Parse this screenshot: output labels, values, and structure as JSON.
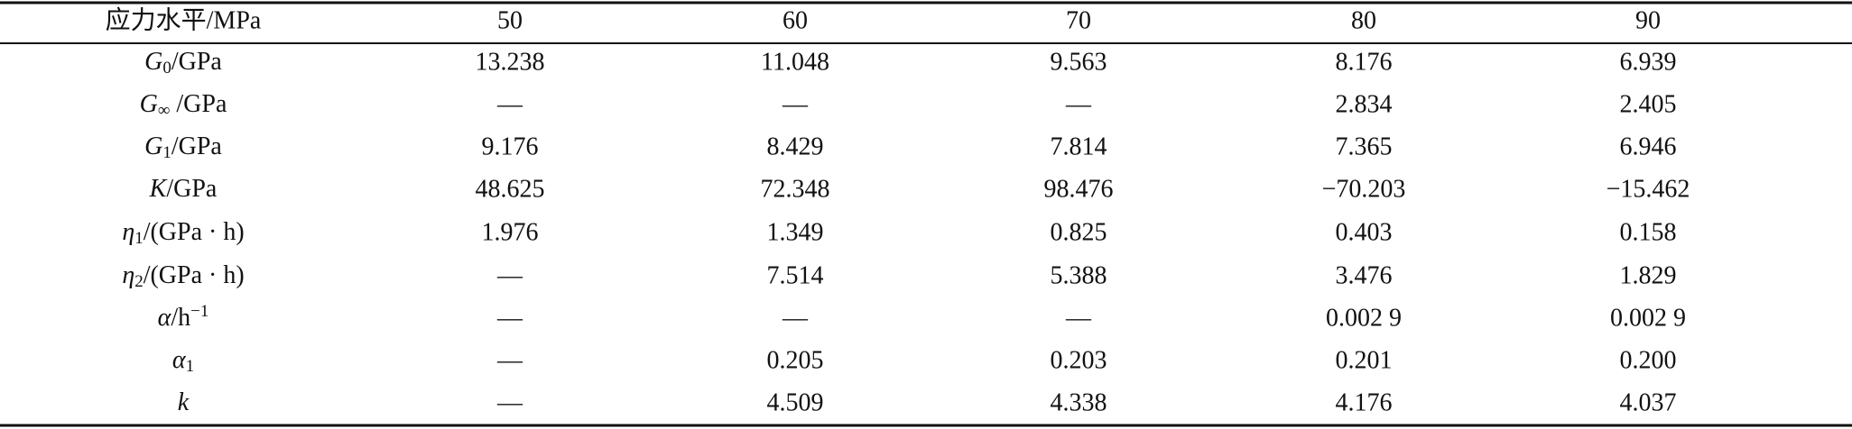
{
  "table": {
    "header": [
      "应力水平/MPa",
      "50",
      "60",
      "70",
      "80",
      "90"
    ],
    "rows": [
      {
        "label": [
          {
            "t": "G",
            "s": "i"
          },
          {
            "t": "0",
            "s": "sub"
          },
          {
            "t": "/GPa"
          }
        ],
        "cells": [
          "13.238",
          "11.048",
          "9.563",
          "8.176",
          "6.939"
        ]
      },
      {
        "label": [
          {
            "t": "G",
            "s": "i"
          },
          {
            "t": "∞",
            "s": "sub"
          },
          {
            "t": " /GPa"
          }
        ],
        "cells": [
          "—",
          "—",
          "—",
          "2.834",
          "2.405"
        ]
      },
      {
        "label": [
          {
            "t": "G",
            "s": "i"
          },
          {
            "t": "1",
            "s": "sub"
          },
          {
            "t": "/GPa"
          }
        ],
        "cells": [
          "9.176",
          "8.429",
          "7.814",
          "7.365",
          "6.946"
        ]
      },
      {
        "label": [
          {
            "t": "K",
            "s": "i"
          },
          {
            "t": "/GPa"
          }
        ],
        "cells": [
          "48.625",
          "72.348",
          "98.476",
          "−70.203",
          "−15.462"
        ]
      },
      {
        "label": [
          {
            "t": "η",
            "s": "i"
          },
          {
            "t": "1",
            "s": "sub"
          },
          {
            "t": "/(GPa · h)"
          }
        ],
        "cells": [
          "1.976",
          "1.349",
          "0.825",
          "0.403",
          "0.158"
        ]
      },
      {
        "label": [
          {
            "t": "η",
            "s": "i"
          },
          {
            "t": "2",
            "s": "sub"
          },
          {
            "t": "/(GPa · h)"
          }
        ],
        "cells": [
          "—",
          "7.514",
          "5.388",
          "3.476",
          "1.829"
        ]
      },
      {
        "label": [
          {
            "t": "α",
            "s": "i"
          },
          {
            "t": "/h"
          },
          {
            "t": "−1",
            "s": "sup"
          }
        ],
        "cells": [
          "—",
          "—",
          "—",
          "0.002 9",
          "0.002 9"
        ]
      },
      {
        "label": [
          {
            "t": "α",
            "s": "i"
          },
          {
            "t": "1",
            "s": "sub"
          }
        ],
        "cells": [
          "—",
          "0.205",
          "0.203",
          "0.201",
          "0.200"
        ]
      },
      {
        "label": [
          {
            "t": "k",
            "s": "i"
          }
        ],
        "cells": [
          "—",
          "4.509",
          "4.338",
          "4.176",
          "4.037"
        ]
      }
    ]
  }
}
